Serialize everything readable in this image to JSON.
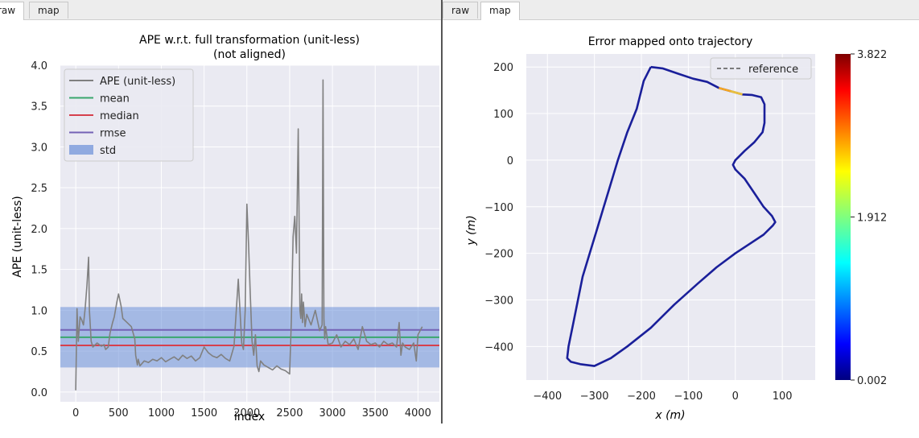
{
  "panes": [
    {
      "tabs": [
        {
          "label": "raw"
        },
        {
          "label": "map"
        }
      ],
      "active_tab": "raw"
    },
    {
      "tabs": [
        {
          "label": "raw"
        },
        {
          "label": "map"
        }
      ],
      "active_tab": "map"
    }
  ],
  "colors": {
    "plot_bg": "#eaeaf2",
    "grid": "#ffffff",
    "ape_line": "#808080",
    "mean": "#3aa76d",
    "median": "#d6404d",
    "rmse": "#7462b5",
    "std": "#6a8fd8",
    "trajectory": "#1a1f9a",
    "reference": "#555555"
  },
  "chart_data": [
    {
      "type": "line",
      "title": "APE w.r.t. full transformation (unit-less)",
      "subtitle": "(not aligned)",
      "xlabel": "index",
      "ylabel": "APE (unit-less)",
      "xlim": [
        -180,
        4250
      ],
      "ylim": [
        -0.12,
        4.0
      ],
      "xticks": [
        0,
        500,
        1000,
        1500,
        2000,
        2500,
        3000,
        3500,
        4000
      ],
      "xtick_labels": [
        "0",
        "500",
        "1000",
        "1500",
        "2000",
        "2500",
        "3000",
        "3500",
        "4000"
      ],
      "yticks": [
        0.0,
        0.5,
        1.0,
        1.5,
        2.0,
        2.5,
        3.0,
        3.5,
        4.0
      ],
      "ytick_labels": [
        "0.0",
        "0.5",
        "1.0",
        "1.5",
        "2.0",
        "2.5",
        "3.0",
        "3.5",
        "4.0"
      ],
      "grid": true,
      "legend_position": "top-left",
      "legend": [
        {
          "label": "APE (unit-less)",
          "kind": "line",
          "color_key": "ape_line"
        },
        {
          "label": "mean",
          "kind": "line",
          "color_key": "mean"
        },
        {
          "label": "median",
          "kind": "line",
          "color_key": "median"
        },
        {
          "label": "rmse",
          "kind": "line",
          "color_key": "rmse"
        },
        {
          "label": "std",
          "kind": "band",
          "color_key": "std"
        }
      ],
      "stats": {
        "mean": 0.67,
        "median": 0.57,
        "rmse": 0.76,
        "std": 0.37
      },
      "series": [
        {
          "name": "APE (unit-less)",
          "x": [
            0,
            15,
            30,
            50,
            70,
            90,
            110,
            130,
            150,
            160,
            180,
            200,
            250,
            300,
            330,
            350,
            380,
            400,
            430,
            450,
            480,
            500,
            510,
            530,
            550,
            600,
            650,
            690,
            700,
            720,
            730,
            750,
            800,
            850,
            900,
            950,
            1000,
            1050,
            1100,
            1150,
            1200,
            1250,
            1300,
            1350,
            1400,
            1450,
            1500,
            1550,
            1600,
            1650,
            1700,
            1750,
            1800,
            1850,
            1900,
            1920,
            1940,
            1960,
            1980,
            2000,
            2020,
            2040,
            2060,
            2080,
            2100,
            2120,
            2140,
            2160,
            2200,
            2250,
            2300,
            2350,
            2400,
            2450,
            2500,
            2520,
            2540,
            2560,
            2580,
            2600,
            2620,
            2630,
            2640,
            2650,
            2660,
            2680,
            2700,
            2750,
            2800,
            2850,
            2880,
            2890,
            2900,
            2910,
            2920,
            2950,
            3000,
            3050,
            3100,
            3150,
            3200,
            3250,
            3300,
            3350,
            3400,
            3450,
            3500,
            3550,
            3600,
            3650,
            3700,
            3750,
            3780,
            3800,
            3820,
            3850,
            3900,
            3950,
            3980,
            4000,
            4050
          ],
          "values": [
            0.02,
            1.02,
            0.62,
            0.92,
            0.88,
            0.82,
            1.02,
            1.3,
            1.65,
            1.0,
            0.62,
            0.55,
            0.6,
            0.56,
            0.58,
            0.52,
            0.55,
            0.72,
            0.85,
            0.92,
            1.1,
            1.2,
            1.15,
            1.05,
            0.9,
            0.85,
            0.8,
            0.65,
            0.45,
            0.33,
            0.4,
            0.32,
            0.38,
            0.36,
            0.4,
            0.38,
            0.42,
            0.37,
            0.4,
            0.43,
            0.39,
            0.45,
            0.41,
            0.44,
            0.38,
            0.42,
            0.55,
            0.48,
            0.44,
            0.42,
            0.46,
            0.41,
            0.38,
            0.56,
            1.38,
            0.98,
            0.6,
            0.52,
            1.0,
            2.3,
            1.8,
            1.2,
            0.62,
            0.45,
            0.7,
            0.32,
            0.25,
            0.38,
            0.33,
            0.3,
            0.27,
            0.32,
            0.28,
            0.26,
            0.22,
            0.9,
            1.9,
            2.15,
            1.7,
            3.22,
            1.0,
            0.9,
            1.2,
            0.85,
            1.1,
            0.8,
            0.95,
            0.82,
            1.0,
            0.75,
            0.82,
            3.82,
            0.9,
            0.65,
            0.8,
            0.58,
            0.6,
            0.7,
            0.55,
            0.62,
            0.58,
            0.65,
            0.52,
            0.8,
            0.62,
            0.58,
            0.6,
            0.55,
            0.62,
            0.58,
            0.6,
            0.55,
            0.85,
            0.45,
            0.6,
            0.55,
            0.52,
            0.6,
            0.38,
            0.7,
            0.8
          ]
        }
      ]
    },
    {
      "type": "line",
      "title": "Error mapped onto trajectory",
      "xlabel": "x (m)",
      "ylabel": "y (m)",
      "xlim": [
        -445,
        170
      ],
      "ylim": [
        -472,
        228
      ],
      "xticks": [
        -400,
        -300,
        -200,
        -100,
        0,
        100
      ],
      "xtick_labels": [
        "−400",
        "−300",
        "−200",
        "−100",
        "0",
        "100"
      ],
      "yticks": [
        200,
        100,
        0,
        -100,
        -200,
        -300,
        -400
      ],
      "ytick_labels": [
        "200",
        "100",
        "0",
        "−100",
        "−200",
        "−300",
        "−400"
      ],
      "grid": true,
      "legend_position": "top-right",
      "legend": [
        {
          "label": "reference",
          "kind": "dashed"
        }
      ],
      "series": [
        {
          "name": "trajectory",
          "x": [
            -180,
            -155,
            -120,
            -90,
            -60,
            -35,
            -10,
            15,
            35,
            55,
            62,
            62,
            58,
            40,
            20,
            0,
            -5,
            0,
            20,
            40,
            60,
            78,
            85,
            80,
            60,
            30,
            0,
            -40,
            -80,
            -130,
            -180,
            -230,
            -265,
            -300,
            -330,
            -350,
            -358,
            -355,
            -345,
            -335,
            -325,
            -310,
            -295,
            -280,
            -265,
            -250,
            -230,
            -210,
            -195,
            -180
          ],
          "y": [
            200,
            197,
            185,
            175,
            168,
            155,
            148,
            141,
            140,
            135,
            120,
            80,
            60,
            38,
            20,
            0,
            -10,
            -20,
            -40,
            -70,
            -100,
            -120,
            -133,
            -140,
            -160,
            -180,
            -200,
            -230,
            -265,
            -310,
            -360,
            -400,
            -425,
            -442,
            -438,
            -433,
            -425,
            -400,
            -350,
            -300,
            -250,
            -200,
            -150,
            -100,
            -50,
            0,
            60,
            110,
            170,
            200
          ]
        }
      ],
      "hot_segments": [
        {
          "from_index": 5,
          "to_index": 7,
          "color": "#f5a623"
        },
        {
          "from_index": 6,
          "to_index": 7,
          "color": "#e8c040"
        }
      ],
      "colorbar": {
        "min": 0.002,
        "max": 3.822,
        "ticks": [
          3.822,
          1.912,
          0.002
        ],
        "tick_labels": [
          "3.822",
          "1.912",
          "0.002"
        ],
        "colormap": "jet"
      }
    }
  ]
}
